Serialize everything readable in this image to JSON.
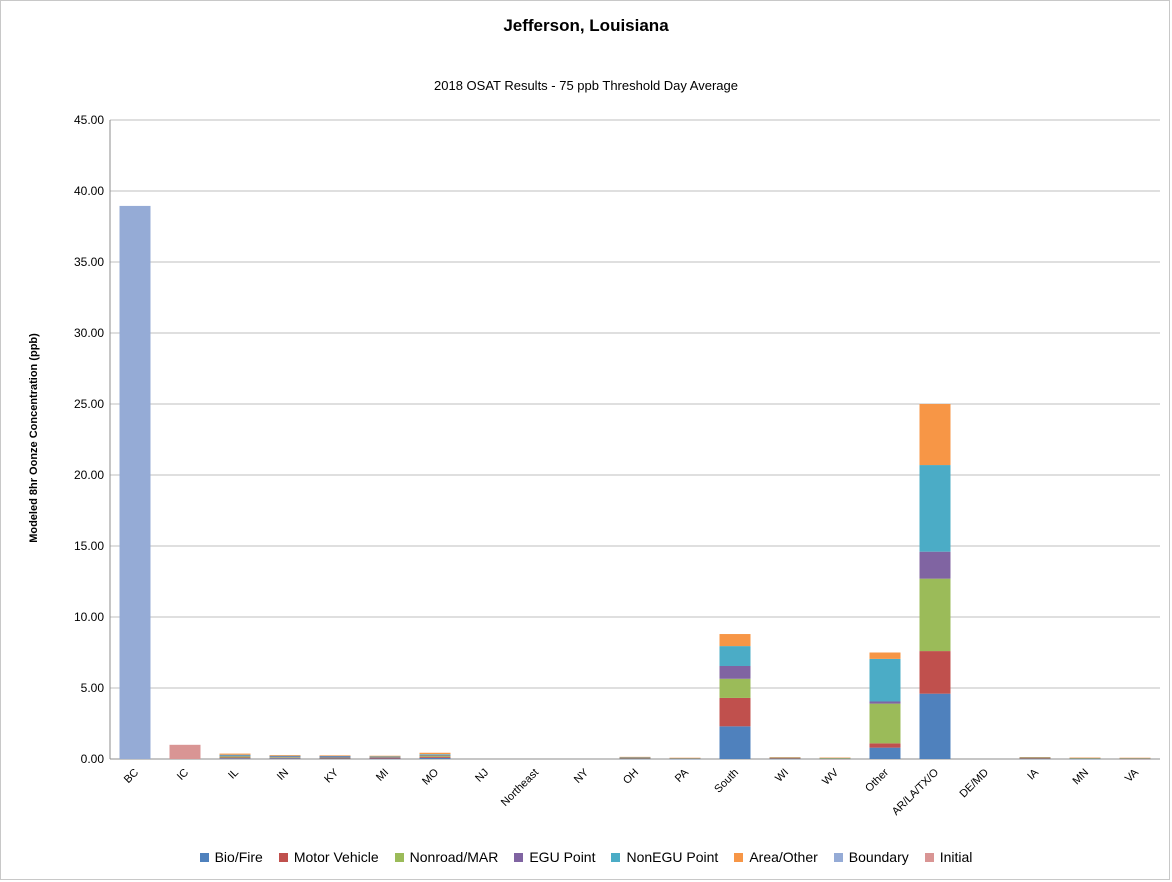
{
  "chart_data": {
    "type": "bar",
    "stacked": true,
    "title": "Jefferson, Louisiana",
    "subtitle": "2018 OSAT Results - 75 ppb Threshold Day Average",
    "xlabel": "",
    "ylabel": "Modeled 8hr Oonze Concentration (ppb)",
    "ylim": [
      0,
      45
    ],
    "yticks": [
      "0.00",
      "5.00",
      "10.00",
      "15.00",
      "20.00",
      "25.00",
      "30.00",
      "35.00",
      "40.00",
      "45.00"
    ],
    "grid": "horizontal",
    "legend_position": "bottom",
    "categories": [
      "BC",
      "IC",
      "IL",
      "IN",
      "KY",
      "MI",
      "MO",
      "NJ",
      "Northeast",
      "NY",
      "OH",
      "PA",
      "South",
      "WI",
      "WV",
      "Other",
      "AR/LA/TX/O",
      "DE/MD",
      "IA",
      "MN",
      "VA"
    ],
    "series": [
      {
        "name": "Bio/Fire",
        "color": "#4f81bd",
        "values": [
          0,
          0,
          0.05,
          0.05,
          0.04,
          0.03,
          0.08,
          0,
          0,
          0,
          0.03,
          0.02,
          2.3,
          0.03,
          0.02,
          0.8,
          4.6,
          0,
          0.03,
          0.02,
          0.02
        ]
      },
      {
        "name": "Motor Vehicle",
        "color": "#c0504d",
        "values": [
          0,
          0,
          0.06,
          0.04,
          0.03,
          0.06,
          0.08,
          0,
          0,
          0,
          0.03,
          0.02,
          2.0,
          0.02,
          0.01,
          0.3,
          3.0,
          0,
          0.02,
          0.02,
          0.01
        ]
      },
      {
        "name": "Nonroad/MAR",
        "color": "#9bbb59",
        "values": [
          0,
          0,
          0.08,
          0.04,
          0.03,
          0.04,
          0.08,
          0,
          0,
          0,
          0.02,
          0.01,
          1.35,
          0.02,
          0.01,
          2.8,
          5.1,
          0,
          0.02,
          0.01,
          0.01
        ]
      },
      {
        "name": "EGU Point",
        "color": "#8064a2",
        "values": [
          0,
          0,
          0.05,
          0.05,
          0.08,
          0.02,
          0.05,
          0,
          0,
          0,
          0.02,
          0.01,
          0.9,
          0.02,
          0.03,
          0.15,
          1.9,
          0,
          0.02,
          0.02,
          0.02
        ]
      },
      {
        "name": "NonEGU Point",
        "color": "#4bacc6",
        "values": [
          0,
          0,
          0.06,
          0.05,
          0.04,
          0.03,
          0.05,
          0,
          0,
          0,
          0.02,
          0.01,
          1.4,
          0.02,
          0.01,
          3.0,
          6.1,
          0,
          0.02,
          0.01,
          0.01
        ]
      },
      {
        "name": "Area/Other",
        "color": "#f79646",
        "values": [
          0,
          0,
          0.08,
          0.05,
          0.04,
          0.05,
          0.1,
          0,
          0,
          0,
          0.03,
          0.02,
          0.85,
          0.02,
          0.02,
          0.45,
          4.3,
          0,
          0.03,
          0.02,
          0.02
        ]
      },
      {
        "name": "Boundary",
        "color": "#95abd6",
        "values": [
          38.95,
          0,
          0,
          0,
          0,
          0,
          0,
          0,
          0,
          0,
          0,
          0,
          0,
          0,
          0,
          0,
          0,
          0,
          0,
          0,
          0
        ]
      },
      {
        "name": "Initial",
        "color": "#d99594",
        "values": [
          0,
          1.0,
          0,
          0,
          0,
          0,
          0,
          0,
          0,
          0,
          0,
          0,
          0,
          0,
          0,
          0,
          0,
          0,
          0,
          0,
          0
        ]
      }
    ]
  }
}
